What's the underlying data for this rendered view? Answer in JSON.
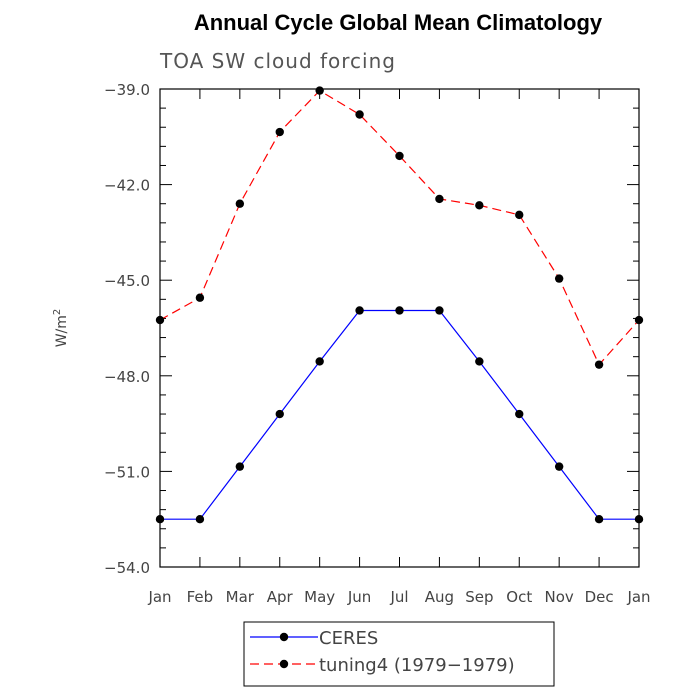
{
  "chart_data": {
    "type": "line",
    "title": "Annual Cycle Global Mean Climatology",
    "subtitle": "TOA SW cloud forcing",
    "ylabel": "W/m",
    "ylabel_superscript": "2",
    "categories": [
      "Jan",
      "Feb",
      "Mar",
      "Apr",
      "May",
      "Jun",
      "Jul",
      "Aug",
      "Sep",
      "Oct",
      "Nov",
      "Dec",
      "Jan"
    ],
    "ylim": [
      -54.0,
      -39.0
    ],
    "yticks": [
      -39.0,
      -42.0,
      -45.0,
      -48.0,
      -51.0,
      -54.0
    ],
    "ytick_labels": [
      "−39.0",
      "−42.0",
      "−45.0",
      "−48.0",
      "−51.0",
      "−54.0"
    ],
    "grid": false,
    "legend_position": "bottom",
    "series": [
      {
        "name": "CERES",
        "color": "#0000ff",
        "line_style": "solid",
        "marker": "filled-circle",
        "values": [
          -52.5,
          -52.5,
          -50.85,
          -49.2,
          -47.55,
          -45.95,
          -45.95,
          -45.95,
          -47.55,
          -49.2,
          -50.85,
          -52.5,
          -52.5
        ]
      },
      {
        "name": "tuning4 (1979−1979)",
        "color": "#ff0000",
        "line_style": "dashed",
        "marker": "filled-circle",
        "values": [
          -46.25,
          -45.55,
          -42.6,
          -40.35,
          -39.05,
          -39.8,
          -41.1,
          -42.45,
          -42.65,
          -42.95,
          -44.95,
          -47.65,
          -46.25
        ]
      }
    ]
  }
}
